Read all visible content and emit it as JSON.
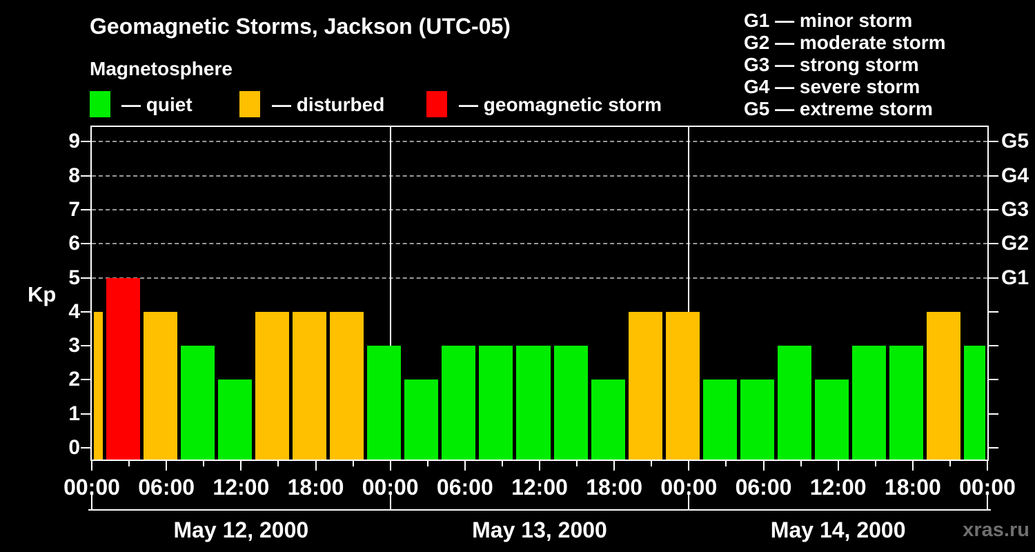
{
  "header": {
    "title": "Geomagnetic Storms, Jackson (UTC-05)",
    "subtitle": "Magnetosphere"
  },
  "legend": {
    "items": [
      {
        "key": "quiet",
        "label": "— quiet",
        "color": "#00ed00"
      },
      {
        "key": "disturbed",
        "label": "— disturbed",
        "color": "#ffc000"
      },
      {
        "key": "storm",
        "label": "— geomagnetic storm",
        "color": "#ff0000"
      }
    ]
  },
  "g_legend": {
    "lines": [
      "G1 — minor storm",
      "G2 — moderate storm",
      "G3 — strong storm",
      "G4 — severe storm",
      "G5 — extreme storm"
    ]
  },
  "watermark": "xras.ru",
  "chart_data": {
    "type": "bar",
    "title": "Geomagnetic Storms, Jackson (UTC-05)",
    "ylabel": "Kp",
    "ylim": [
      0,
      9.4
    ],
    "y_ticks": [
      0,
      1,
      2,
      3,
      4,
      5,
      6,
      7,
      8,
      9
    ],
    "grid_levels_kp": [
      5,
      6,
      7,
      8,
      9
    ],
    "right_axis": [
      {
        "kp": 5,
        "label": "G1"
      },
      {
        "kp": 6,
        "label": "G2"
      },
      {
        "kp": 7,
        "label": "G3"
      },
      {
        "kp": 8,
        "label": "G4"
      },
      {
        "kp": 9,
        "label": "G5"
      }
    ],
    "x_hours_total": 72,
    "x_major_tick_hours": 6,
    "x_minor_tick_hours": 3,
    "x_tick_labels_cycle": [
      "00:00",
      "06:00",
      "12:00",
      "18:00"
    ],
    "days": [
      {
        "label": "May 12, 2000",
        "start_hour": 0
      },
      {
        "label": "May 13, 2000",
        "start_hour": 24
      },
      {
        "label": "May 14, 2000",
        "start_hour": 48
      }
    ],
    "bars": [
      {
        "start_hour": 0,
        "end_hour": 1,
        "kp": 4,
        "status": "disturbed"
      },
      {
        "start_hour": 1,
        "end_hour": 4,
        "kp": 5,
        "status": "storm"
      },
      {
        "start_hour": 4,
        "end_hour": 7,
        "kp": 4,
        "status": "disturbed"
      },
      {
        "start_hour": 7,
        "end_hour": 10,
        "kp": 3,
        "status": "quiet"
      },
      {
        "start_hour": 10,
        "end_hour": 13,
        "kp": 2,
        "status": "quiet"
      },
      {
        "start_hour": 13,
        "end_hour": 16,
        "kp": 4,
        "status": "disturbed"
      },
      {
        "start_hour": 16,
        "end_hour": 19,
        "kp": 4,
        "status": "disturbed"
      },
      {
        "start_hour": 19,
        "end_hour": 22,
        "kp": 4,
        "status": "disturbed"
      },
      {
        "start_hour": 22,
        "end_hour": 25,
        "kp": 3,
        "status": "quiet"
      },
      {
        "start_hour": 25,
        "end_hour": 28,
        "kp": 2,
        "status": "quiet"
      },
      {
        "start_hour": 28,
        "end_hour": 31,
        "kp": 3,
        "status": "quiet"
      },
      {
        "start_hour": 31,
        "end_hour": 34,
        "kp": 3,
        "status": "quiet"
      },
      {
        "start_hour": 34,
        "end_hour": 37,
        "kp": 3,
        "status": "quiet"
      },
      {
        "start_hour": 37,
        "end_hour": 40,
        "kp": 3,
        "status": "quiet"
      },
      {
        "start_hour": 40,
        "end_hour": 43,
        "kp": 2,
        "status": "quiet"
      },
      {
        "start_hour": 43,
        "end_hour": 46,
        "kp": 4,
        "status": "disturbed"
      },
      {
        "start_hour": 46,
        "end_hour": 49,
        "kp": 4,
        "status": "disturbed"
      },
      {
        "start_hour": 49,
        "end_hour": 52,
        "kp": 2,
        "status": "quiet"
      },
      {
        "start_hour": 52,
        "end_hour": 55,
        "kp": 2,
        "status": "quiet"
      },
      {
        "start_hour": 55,
        "end_hour": 58,
        "kp": 3,
        "status": "quiet"
      },
      {
        "start_hour": 58,
        "end_hour": 61,
        "kp": 2,
        "status": "quiet"
      },
      {
        "start_hour": 61,
        "end_hour": 64,
        "kp": 3,
        "status": "quiet"
      },
      {
        "start_hour": 64,
        "end_hour": 67,
        "kp": 3,
        "status": "quiet"
      },
      {
        "start_hour": 67,
        "end_hour": 70,
        "kp": 4,
        "status": "disturbed"
      },
      {
        "start_hour": 70,
        "end_hour": 72,
        "kp": 3,
        "status": "quiet"
      }
    ]
  }
}
